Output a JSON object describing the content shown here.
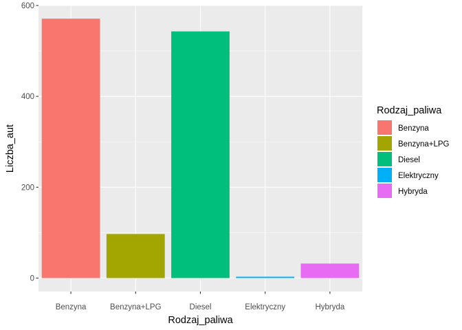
{
  "chart_data": {
    "type": "bar",
    "categories": [
      "Benzyna",
      "Benzyna+LPG",
      "Diesel",
      "Elektryczny",
      "Hybryda"
    ],
    "values": [
      571,
      97,
      543,
      3,
      32
    ],
    "colors": [
      "#F8766D",
      "#A3A500",
      "#00BF7D",
      "#00B0F6",
      "#E76BF3"
    ],
    "xlabel": "Rodzaj_paliwa",
    "ylabel": "Liczba_aut",
    "ylim": [
      -29.55,
      600
    ],
    "yticks": [
      0,
      200,
      400,
      600
    ],
    "ytick_labels": [
      "0",
      "200",
      "400",
      "600"
    ],
    "grid": true,
    "legend": {
      "title": "Rodzaj_paliwa",
      "position": "right",
      "entries": [
        "Benzyna",
        "Benzyna+LPG",
        "Diesel",
        "Elektryczny",
        "Hybryda"
      ]
    },
    "panel_background": "#EBEBEB",
    "grid_color": "#FFFFFF"
  }
}
